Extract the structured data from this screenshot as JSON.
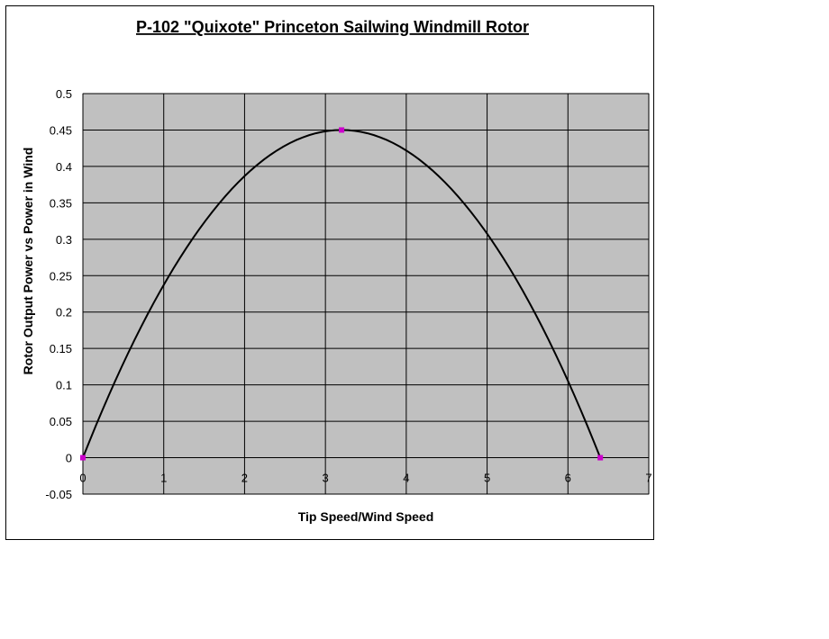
{
  "chart_data": {
    "type": "scatter",
    "title": "P-102 \"Quixote\" Princeton Sailwing Windmill Rotor",
    "xlabel": "Tip Speed/Wind Speed",
    "ylabel": "Rotor Output Power vs Power in Wind",
    "xlim": [
      0,
      7
    ],
    "ylim": [
      -0.05,
      0.5
    ],
    "x_ticks": [
      "0",
      "1",
      "2",
      "3",
      "4",
      "5",
      "6",
      "7"
    ],
    "y_ticks": [
      "-0.05",
      "0",
      "0.05",
      "0.1",
      "0.15",
      "0.2",
      "0.25",
      "0.3",
      "0.35",
      "0.4",
      "0.45",
      "0.5"
    ],
    "grid": true,
    "plot_background": "#c0c0c0",
    "line_color": "#000000",
    "marker_color": "#cc00cc",
    "series": [
      {
        "points": [
          {
            "x": 0.0,
            "y": 0.0
          },
          {
            "x": 3.2,
            "y": 0.45
          },
          {
            "x": 6.4,
            "y": 0.0
          }
        ]
      }
    ]
  }
}
